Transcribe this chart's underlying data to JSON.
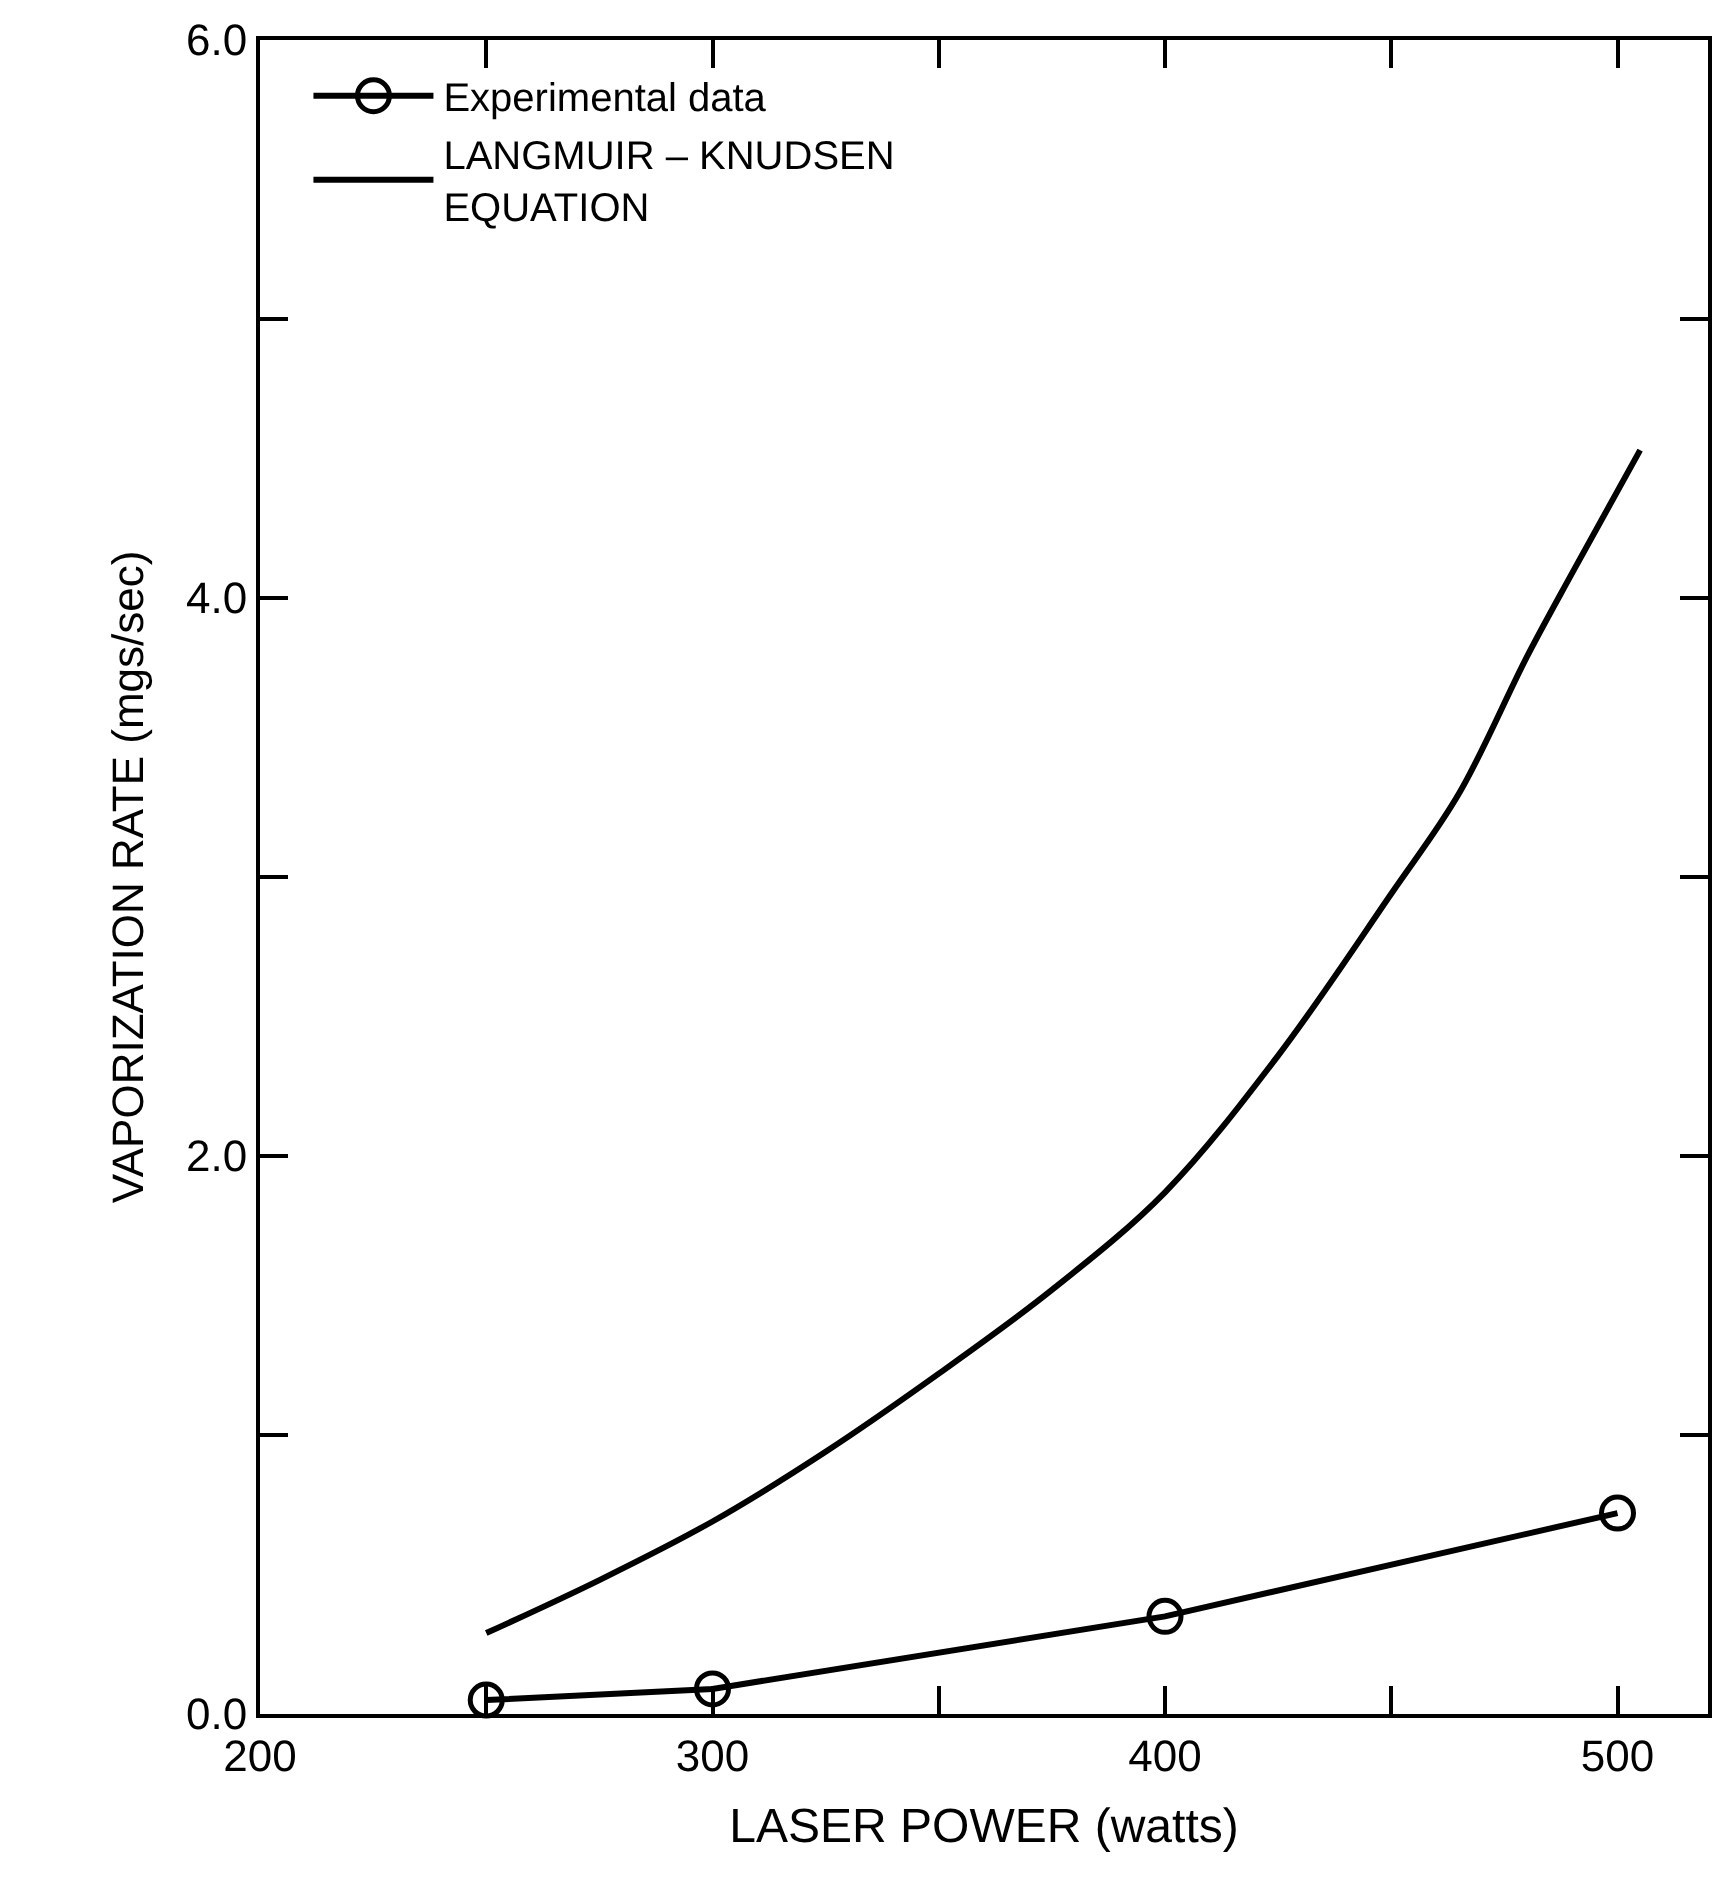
{
  "chart_data": {
    "type": "line",
    "xlabel": "LASER POWER (watts)",
    "ylabel": "VAPORIZATION RATE (mgs/sec)",
    "xlim": [
      200,
      520
    ],
    "ylim": [
      0,
      6
    ],
    "xticks": [
      200,
      {
        "value": 250,
        "label": null
      },
      300,
      {
        "value": 350,
        "label": null
      },
      400,
      {
        "value": 450,
        "label": null
      },
      500
    ],
    "yticks": [
      {
        "value": 0,
        "label": "0.0"
      },
      {
        "value": 1,
        "label": null
      },
      {
        "value": 2,
        "label": "2.0"
      },
      {
        "value": 3,
        "label": null
      },
      {
        "value": 4,
        "label": "4.0"
      },
      {
        "value": 5,
        "label": null
      },
      {
        "value": 6,
        "label": "6.0"
      }
    ],
    "legend": "top left",
    "series": [
      {
        "name": "Experimental data",
        "color": "#000000",
        "marker": "circle",
        "x": [
          250,
          300,
          400,
          500
        ],
        "values": [
          0.05,
          0.09,
          0.35,
          0.72
        ]
      },
      {
        "name": "LANGMUIR – KNUDSEN\nEQUATION",
        "color": "#000000",
        "marker": "none",
        "x": [
          250,
          275,
          300,
          325,
          350,
          375,
          400,
          425,
          450,
          465,
          480,
          490,
          505
        ],
        "values": [
          0.29,
          0.48,
          0.69,
          0.94,
          1.22,
          1.52,
          1.87,
          2.36,
          2.94,
          3.3,
          3.79,
          4.09,
          4.53
        ]
      }
    ]
  }
}
